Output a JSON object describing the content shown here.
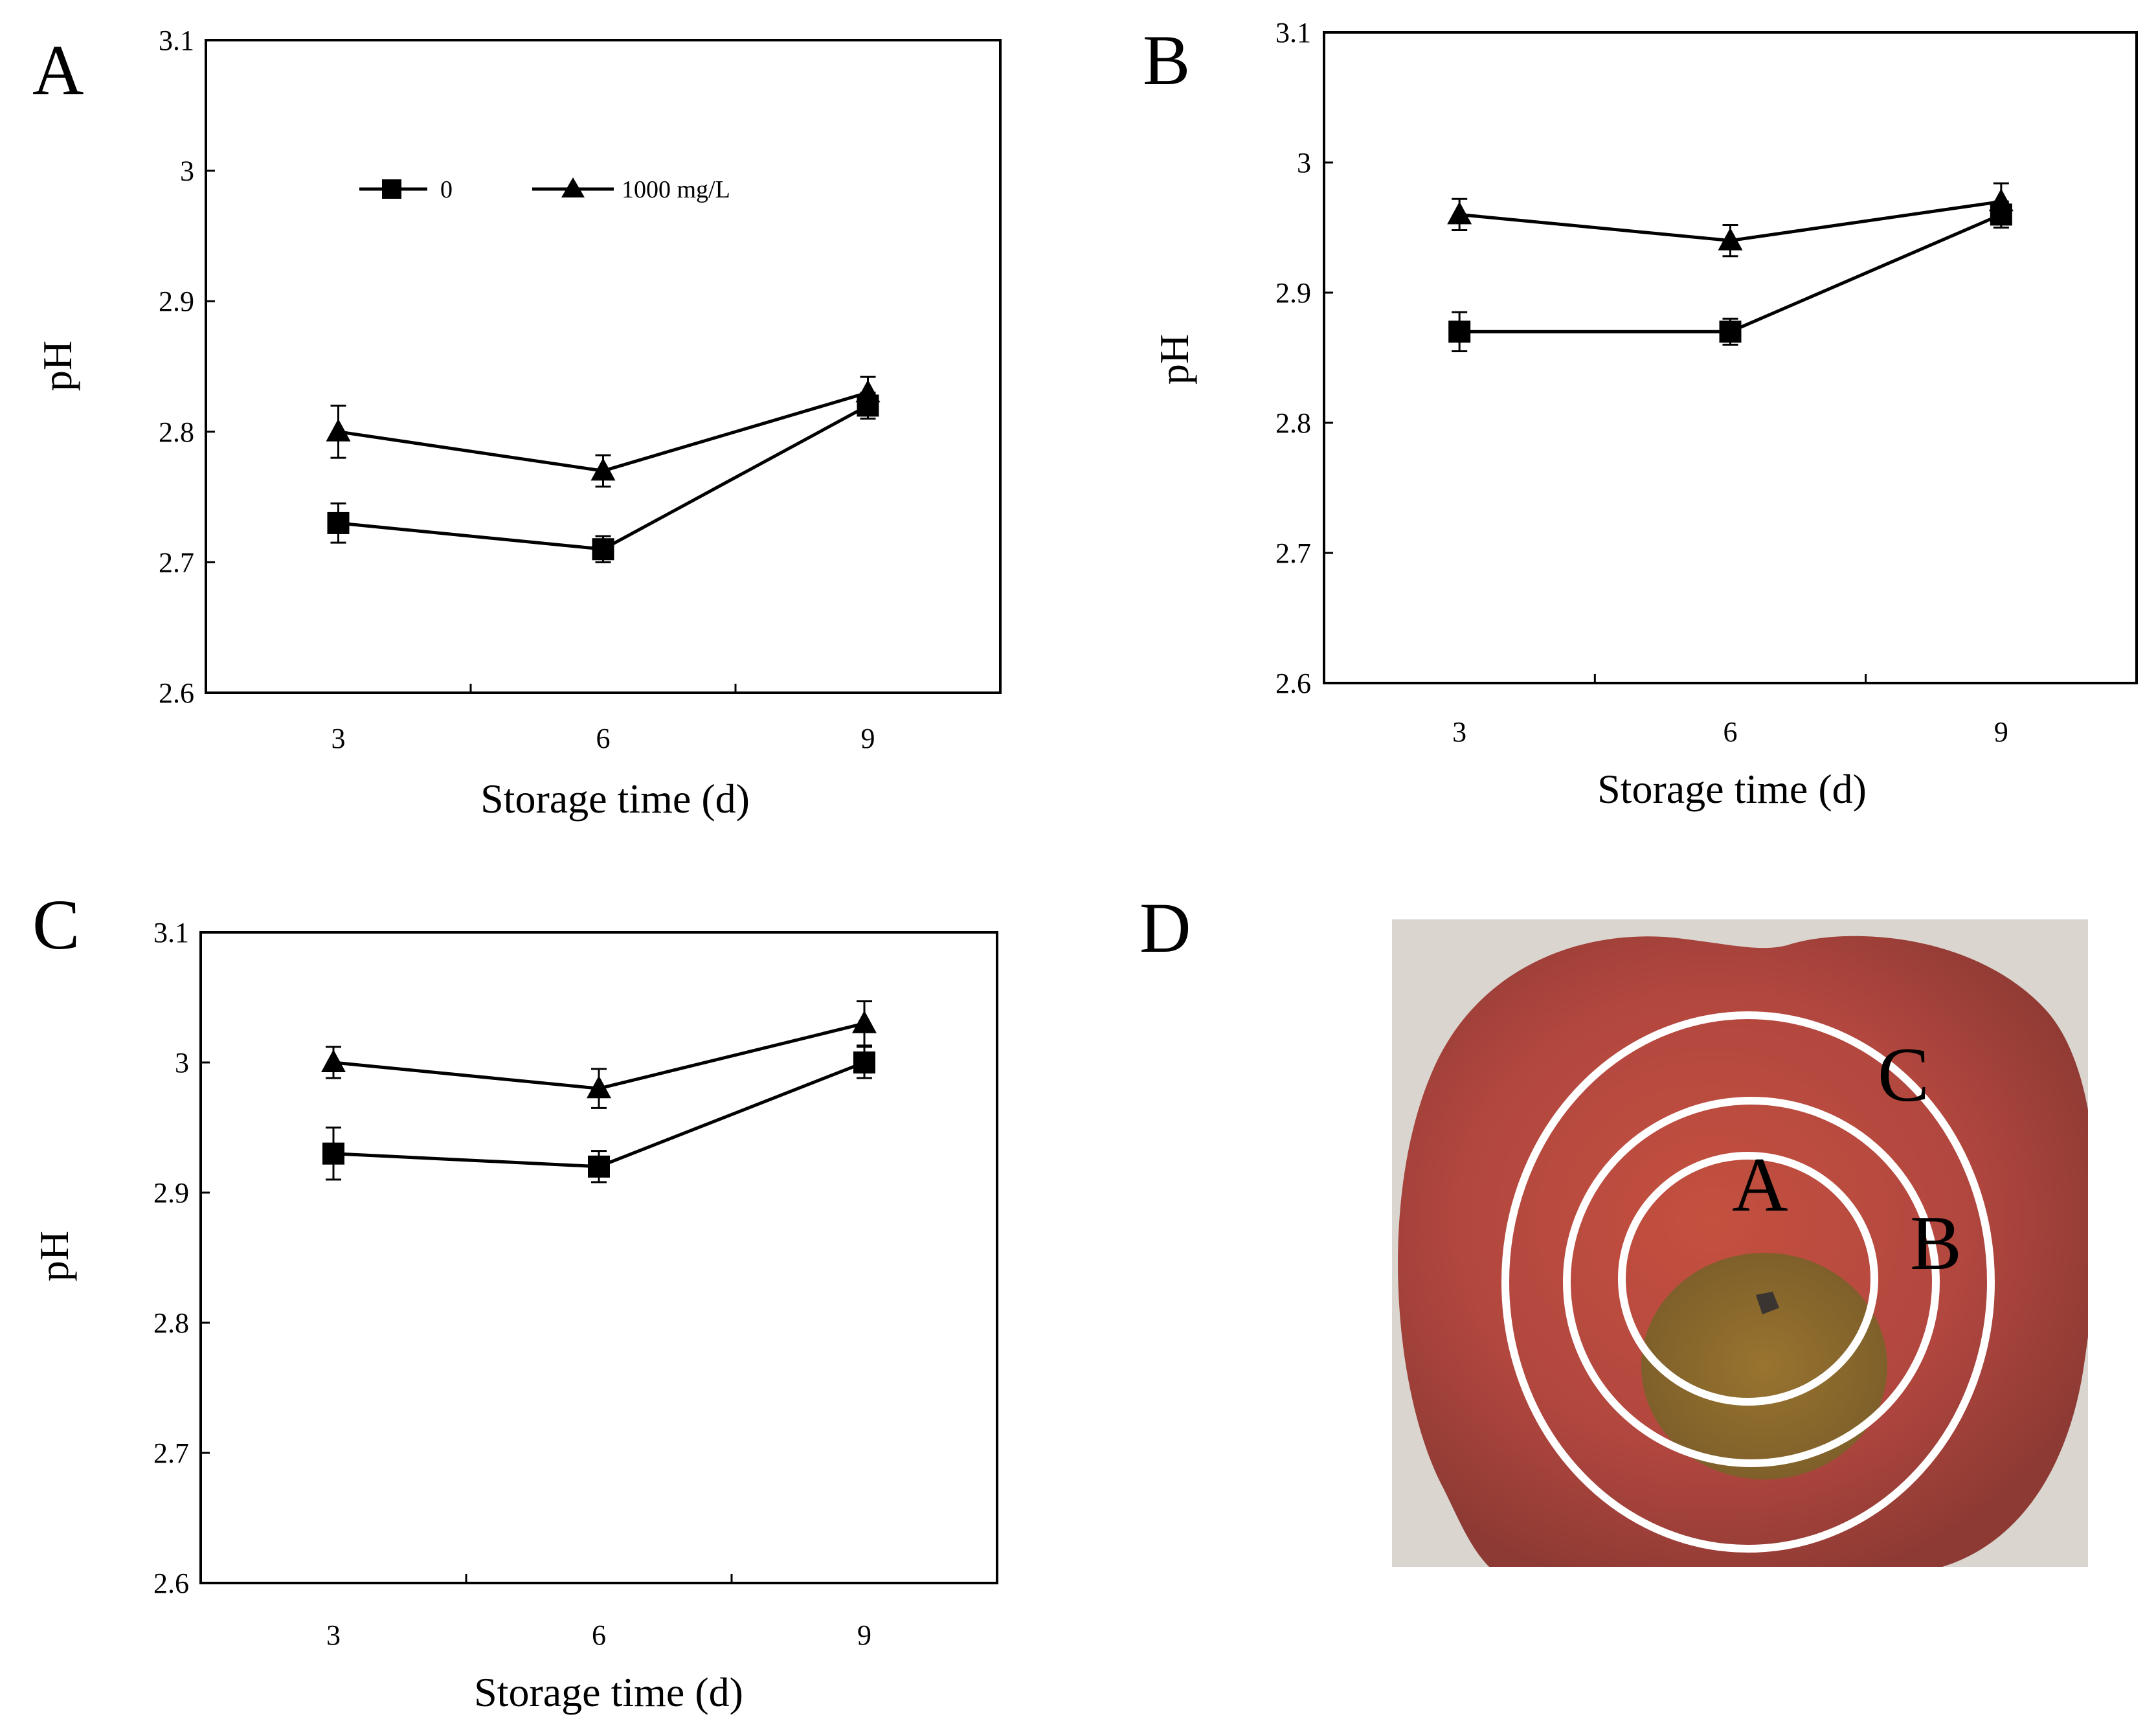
{
  "figure": {
    "photo": {
      "letter": "D",
      "zone_labels": [
        "A",
        "B",
        "C"
      ],
      "colors": {
        "background": "#dad6cf",
        "apple": "#b2473f",
        "core": "#8a6a30",
        "rings": "#ffffff"
      }
    }
  },
  "chart_data": [
    {
      "type": "line",
      "panel": "A",
      "xlabel": "Storage time (d)",
      "ylabel": "pH",
      "x": [
        3,
        6,
        9
      ],
      "ylim": [
        2.6,
        3.1
      ],
      "yticks": [
        "2.6",
        "2.7",
        "2.8",
        "2.9",
        "3",
        "3.1"
      ],
      "xticks": [
        "3",
        "6",
        "9"
      ],
      "legend": [
        "0",
        "1000 mg/L"
      ],
      "series": [
        {
          "name": "0",
          "marker": "square",
          "values": [
            2.73,
            2.71,
            2.82
          ],
          "errors": [
            0.015,
            0.01,
            0.01
          ]
        },
        {
          "name": "1000 mg/L",
          "marker": "triangle",
          "values": [
            2.8,
            2.77,
            2.83
          ],
          "errors": [
            0.02,
            0.012,
            0.012
          ]
        }
      ]
    },
    {
      "type": "line",
      "panel": "B",
      "xlabel": "Storage time (d)",
      "ylabel": "pH",
      "x": [
        3,
        6,
        9
      ],
      "ylim": [
        2.6,
        3.1
      ],
      "yticks": [
        "2.6",
        "2.7",
        "2.8",
        "2.9",
        "3",
        "3.1"
      ],
      "xticks": [
        "3",
        "6",
        "9"
      ],
      "series": [
        {
          "name": "0",
          "marker": "square",
          "values": [
            2.87,
            2.87,
            2.96
          ],
          "errors": [
            0.015,
            0.01,
            0.01
          ]
        },
        {
          "name": "1000 mg/L",
          "marker": "triangle",
          "values": [
            2.96,
            2.94,
            2.97
          ],
          "errors": [
            0.012,
            0.012,
            0.014
          ]
        }
      ]
    },
    {
      "type": "line",
      "panel": "C",
      "xlabel": "Storage time (d)",
      "ylabel": "pH",
      "x": [
        3,
        6,
        9
      ],
      "ylim": [
        2.6,
        3.1
      ],
      "yticks": [
        "2.6",
        "2.7",
        "2.8",
        "2.9",
        "3",
        "3.1"
      ],
      "xticks": [
        "3",
        "6",
        "9"
      ],
      "series": [
        {
          "name": "0",
          "marker": "square",
          "values": [
            2.93,
            2.92,
            3.0
          ],
          "errors": [
            0.02,
            0.012,
            0.012
          ]
        },
        {
          "name": "1000 mg/L",
          "marker": "triangle",
          "values": [
            3.0,
            2.98,
            3.03
          ],
          "errors": [
            0.012,
            0.015,
            0.017
          ]
        }
      ]
    }
  ]
}
